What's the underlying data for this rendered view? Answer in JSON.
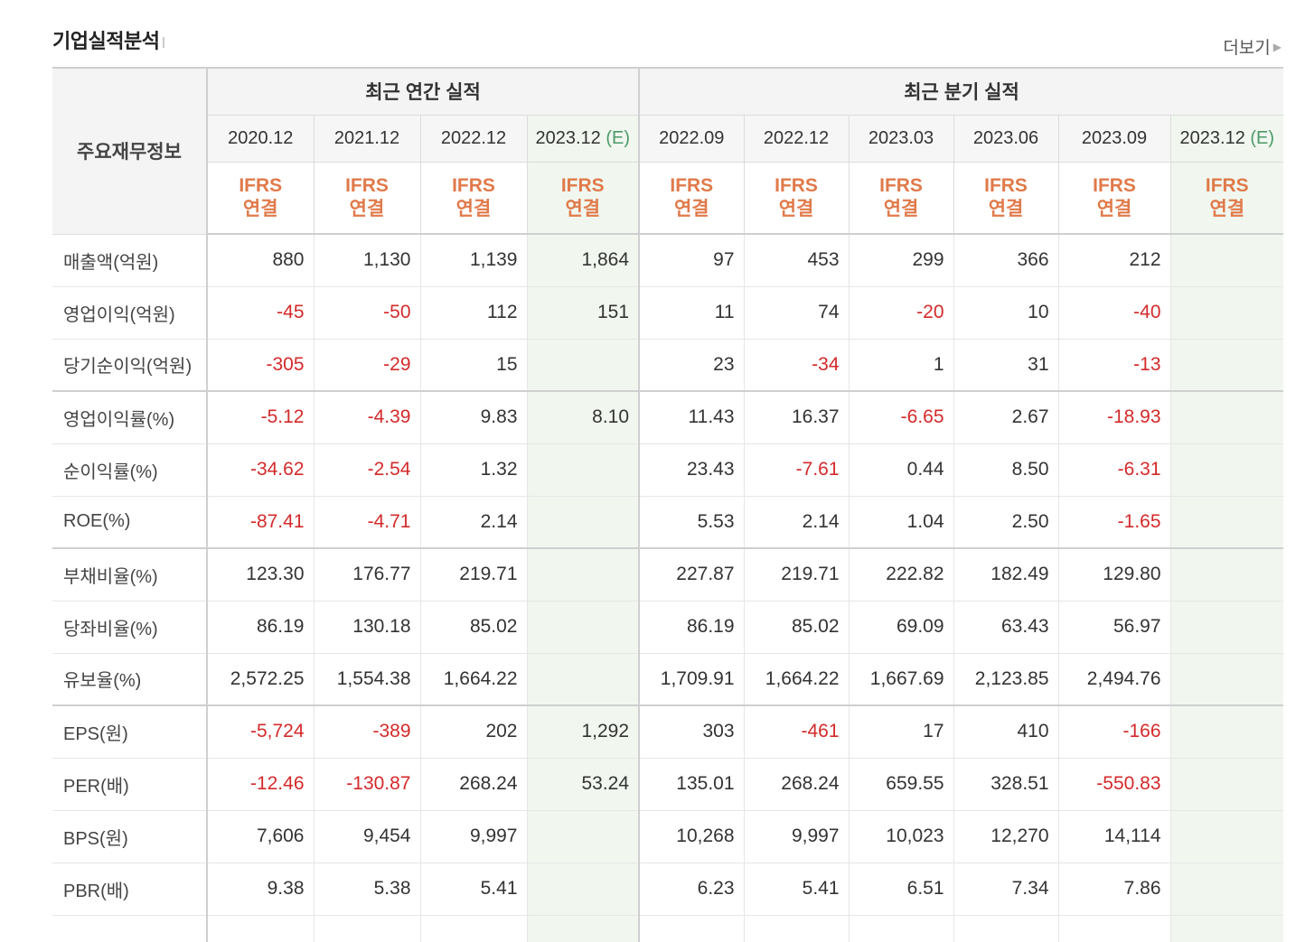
{
  "header": {
    "title": "기업실적분석",
    "more_label": "더보기",
    "more_icon": "chevron-right-icon"
  },
  "table": {
    "corner_label": "주요재무정보",
    "groups": {
      "annual": "최근 연간 실적",
      "quarterly": "최근 분기 실적"
    },
    "columns": [
      {
        "date": "2020.12",
        "estimate": "",
        "ifrs": "IFRS",
        "basis": "연결"
      },
      {
        "date": "2021.12",
        "estimate": "",
        "ifrs": "IFRS",
        "basis": "연결"
      },
      {
        "date": "2022.12",
        "estimate": "",
        "ifrs": "IFRS",
        "basis": "연결"
      },
      {
        "date": "2023.12",
        "estimate": "(E)",
        "ifrs": "IFRS",
        "basis": "연결"
      },
      {
        "date": "2022.09",
        "estimate": "",
        "ifrs": "IFRS",
        "basis": "연결"
      },
      {
        "date": "2022.12",
        "estimate": "",
        "ifrs": "IFRS",
        "basis": "연결"
      },
      {
        "date": "2023.03",
        "estimate": "",
        "ifrs": "IFRS",
        "basis": "연결"
      },
      {
        "date": "2023.06",
        "estimate": "",
        "ifrs": "IFRS",
        "basis": "연결"
      },
      {
        "date": "2023.09",
        "estimate": "",
        "ifrs": "IFRS",
        "basis": "연결"
      },
      {
        "date": "2023.12",
        "estimate": "(E)",
        "ifrs": "IFRS",
        "basis": "연결"
      }
    ],
    "rows": [
      {
        "label": "매출액(억원)",
        "values": [
          "880",
          "1,130",
          "1,139",
          "1,864",
          "97",
          "453",
          "299",
          "366",
          "212",
          ""
        ]
      },
      {
        "label": "영업이익(억원)",
        "values": [
          "-45",
          "-50",
          "112",
          "151",
          "11",
          "74",
          "-20",
          "10",
          "-40",
          ""
        ]
      },
      {
        "label": "당기순이익(억원)",
        "values": [
          "-305",
          "-29",
          "15",
          "",
          "23",
          "-34",
          "1",
          "31",
          "-13",
          ""
        ]
      },
      {
        "label": "영업이익률(%)",
        "values": [
          "-5.12",
          "-4.39",
          "9.83",
          "8.10",
          "11.43",
          "16.37",
          "-6.65",
          "2.67",
          "-18.93",
          ""
        ]
      },
      {
        "label": "순이익률(%)",
        "values": [
          "-34.62",
          "-2.54",
          "1.32",
          "",
          "23.43",
          "-7.61",
          "0.44",
          "8.50",
          "-6.31",
          ""
        ]
      },
      {
        "label": "ROE(%)",
        "values": [
          "-87.41",
          "-4.71",
          "2.14",
          "",
          "5.53",
          "2.14",
          "1.04",
          "2.50",
          "-1.65",
          ""
        ]
      },
      {
        "label": "부채비율(%)",
        "values": [
          "123.30",
          "176.77",
          "219.71",
          "",
          "227.87",
          "219.71",
          "222.82",
          "182.49",
          "129.80",
          ""
        ]
      },
      {
        "label": "당좌비율(%)",
        "values": [
          "86.19",
          "130.18",
          "85.02",
          "",
          "86.19",
          "85.02",
          "69.09",
          "63.43",
          "56.97",
          ""
        ]
      },
      {
        "label": "유보율(%)",
        "values": [
          "2,572.25",
          "1,554.38",
          "1,664.22",
          "",
          "1,709.91",
          "1,664.22",
          "1,667.69",
          "2,123.85",
          "2,494.76",
          ""
        ]
      },
      {
        "label": "EPS(원)",
        "values": [
          "-5,724",
          "-389",
          "202",
          "1,292",
          "303",
          "-461",
          "17",
          "410",
          "-166",
          ""
        ]
      },
      {
        "label": "PER(배)",
        "values": [
          "-12.46",
          "-130.87",
          "268.24",
          "53.24",
          "135.01",
          "268.24",
          "659.55",
          "328.51",
          "-550.83",
          ""
        ]
      },
      {
        "label": "BPS(원)",
        "values": [
          "7,606",
          "9,454",
          "9,997",
          "",
          "10,268",
          "9,997",
          "10,023",
          "12,270",
          "14,114",
          ""
        ]
      },
      {
        "label": "PBR(배)",
        "values": [
          "9.38",
          "5.38",
          "5.41",
          "",
          "6.23",
          "5.41",
          "6.51",
          "7.34",
          "7.86",
          ""
        ]
      }
    ]
  },
  "colors": {
    "negative": "#d42a2a",
    "ifrs": "#e07a4a",
    "estimate_bg": "#f1f7ef",
    "estimate_text": "#4a9a6a"
  }
}
